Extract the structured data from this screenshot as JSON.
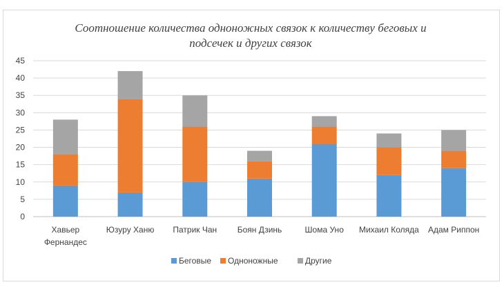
{
  "chart_data": {
    "type": "bar",
    "stacked": true,
    "title_lines": [
      "Соотношение количества одноножных связок к количеству беговых и",
      "подсечек и других связок"
    ],
    "categories": [
      [
        "Хавьер",
        "Фернандес"
      ],
      [
        "Юзуру Ханю"
      ],
      [
        "Патрик Чан"
      ],
      [
        "Боян Дзинь"
      ],
      [
        "Шома Уно"
      ],
      [
        "Михаил Коляда"
      ],
      [
        "Адам Риппон"
      ]
    ],
    "series": [
      {
        "name": "Беговые",
        "color": "#5b9bd5",
        "values": [
          9,
          7,
          10,
          11,
          21,
          12,
          14
        ]
      },
      {
        "name": "Одноножные",
        "color": "#ed7d31",
        "values": [
          9,
          27,
          16,
          5,
          5,
          8,
          5
        ]
      },
      {
        "name": "Другие",
        "color": "#a5a5a5",
        "values": [
          10,
          8,
          9,
          3,
          3,
          4,
          6
        ]
      }
    ],
    "ylim": [
      0,
      45
    ],
    "yticks": [
      "0",
      "5",
      "10",
      "15",
      "20",
      "25",
      "30",
      "35",
      "40",
      "45"
    ],
    "grid": true,
    "legend_position": "bottom"
  }
}
